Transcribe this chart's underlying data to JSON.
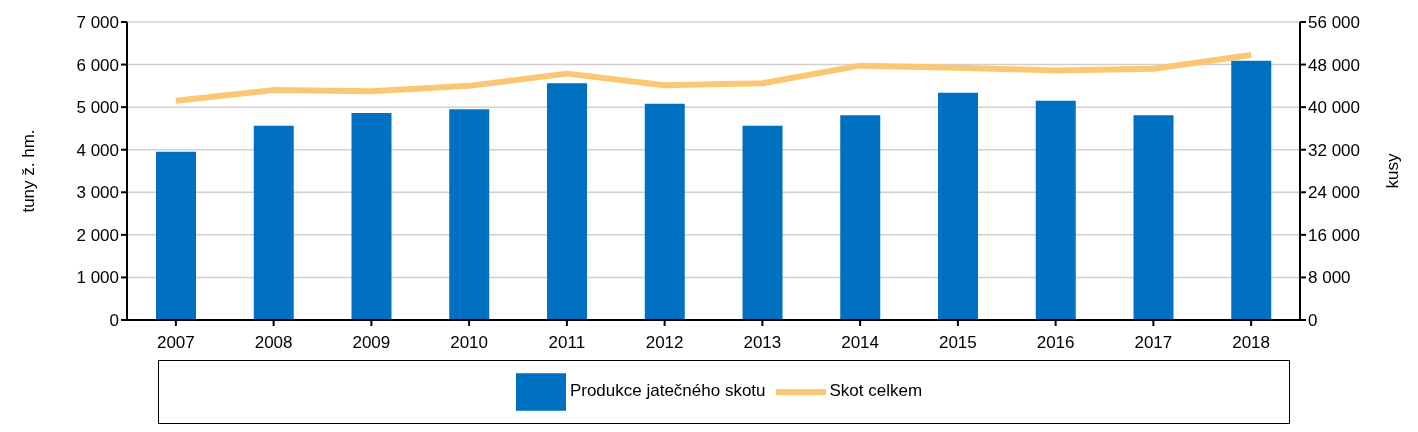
{
  "chart_data": {
    "type": "bar",
    "categories": [
      "2007",
      "2008",
      "2009",
      "2010",
      "2011",
      "2012",
      "2013",
      "2014",
      "2015",
      "2016",
      "2017",
      "2018"
    ],
    "series": [
      {
        "name": "Produkce jatečného skotu",
        "color": "#0070c0",
        "values": [
          3950,
          4560,
          4860,
          4950,
          5560,
          5080,
          4560,
          4810,
          5340,
          5150,
          4810,
          6090
        ]
      },
      {
        "name": "Skot celkem",
        "type": "line",
        "axis": "y2",
        "color": "#fac775",
        "values": [
          41200,
          43200,
          43000,
          44000,
          46300,
          44100,
          44500,
          47800,
          47400,
          46900,
          47200,
          49800
        ]
      }
    ],
    "ylabel": "tuny ž. hm.",
    "y2label": "kusy",
    "ylim": [
      0,
      7000
    ],
    "yticks": [
      {
        "value": 0,
        "label": "0"
      },
      {
        "value": 1000,
        "label": "1 000"
      },
      {
        "value": 2000,
        "label": "2 000"
      },
      {
        "value": 3000,
        "label": "3 000"
      },
      {
        "value": 4000,
        "label": "4 000"
      },
      {
        "value": 5000,
        "label": "5 000"
      },
      {
        "value": 6000,
        "label": "6 000"
      },
      {
        "value": 7000,
        "label": "7 000"
      }
    ],
    "y2lim": [
      0,
      56000
    ],
    "y2ticks": [
      {
        "value": 0,
        "label": "0"
      },
      {
        "value": 8000,
        "label": "8 000"
      },
      {
        "value": 16000,
        "label": "16 000"
      },
      {
        "value": 24000,
        "label": "24 000"
      },
      {
        "value": 32000,
        "label": "32 000"
      },
      {
        "value": 40000,
        "label": "40 000"
      },
      {
        "value": 48000,
        "label": "48 000"
      },
      {
        "value": 56000,
        "label": "56 000"
      }
    ],
    "grid": "y",
    "legend": "bottom",
    "marker": "none",
    "line_style": "solid"
  }
}
